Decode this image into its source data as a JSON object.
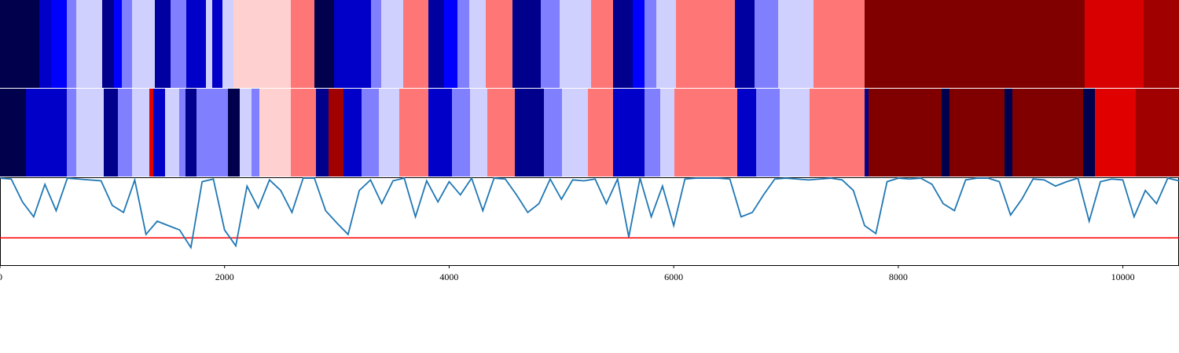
{
  "chart_data": [
    {
      "type": "segments",
      "xlim": [
        0,
        10500
      ],
      "breaks": [
        0,
        350,
        455,
        595,
        679,
        910,
        1015,
        1085,
        1176,
        1379,
        1519,
        1659,
        1834,
        1890,
        1981,
        2079,
        2590,
        2800,
        2975,
        3304,
        3395,
        3591,
        3815,
        3955,
        4074,
        4179,
        4326,
        4564,
        4816,
        4984,
        5264,
        5460,
        5635,
        5740,
        5845,
        6020,
        6545,
        6720,
        6930,
        7245,
        7700,
        9660,
        10185,
        10500
      ],
      "colors": [
        "#00004c",
        "#0000c8",
        "#0000ff",
        "#8080ff",
        "#d0d0ff",
        "#00008c",
        "#0000ff",
        "#8080ff",
        "#d0d0ff",
        "#0000a0",
        "#8080ff",
        "#0000c8",
        "#d0d0ff",
        "#0000c8",
        "#d0d0ff",
        "#ffd0d0",
        "#ff7676",
        "#00004c",
        "#0000c8",
        "#8080ff",
        "#d0d0ff",
        "#ff7676",
        "#0000a0",
        "#0000ff",
        "#8080ff",
        "#d0d0ff",
        "#ff7676",
        "#00008c",
        "#8080ff",
        "#d0d0ff",
        "#ff7676",
        "#00008c",
        "#0000ff",
        "#8080ff",
        "#d0d0ff",
        "#ff7676",
        "#0000a0",
        "#8080ff",
        "#d0d0ff",
        "#ff7676",
        "#800000",
        "#d80000",
        "#a00000"
      ]
    },
    {
      "type": "segments",
      "xlim": [
        0,
        10500
      ],
      "breaks": [
        0,
        231,
        595,
        679,
        924,
        1050,
        1176,
        1330,
        1365,
        1470,
        1596,
        1652,
        1750,
        2030,
        2135,
        2240,
        2310,
        2590,
        2814,
        2926,
        3059,
        3220,
        3374,
        3556,
        3815,
        4025,
        4186,
        4340,
        4585,
        4844,
        5005,
        5236,
        5460,
        5740,
        5880,
        6006,
        6566,
        6734,
        6944,
        7210,
        7700,
        7735,
        8386,
        8456,
        8946,
        9016,
        9646,
        9751,
        10115,
        10500
      ],
      "colors": [
        "#00004c",
        "#0000c8",
        "#8080ff",
        "#d0d0ff",
        "#00008c",
        "#8080ff",
        "#d0d0ff",
        "#e00000",
        "#0000c8",
        "#d0d0ff",
        "#8080ff",
        "#00008c",
        "#8080ff",
        "#00004c",
        "#d0d0ff",
        "#8080ff",
        "#ffd0d0",
        "#ff7676",
        "#00008c",
        "#a00000",
        "#0000c8",
        "#8080ff",
        "#d0d0ff",
        "#ff7676",
        "#0000c8",
        "#8080ff",
        "#d0d0ff",
        "#ff7676",
        "#00008c",
        "#8080ff",
        "#d0d0ff",
        "#ff7676",
        "#0000c8",
        "#8080ff",
        "#d0d0ff",
        "#ff7676",
        "#0000c8",
        "#8080ff",
        "#d0d0ff",
        "#ff7676",
        "#00008c",
        "#800000",
        "#00004c",
        "#800000",
        "#00004c",
        "#800000",
        "#00004c",
        "#e00000",
        "#a00000"
      ]
    },
    {
      "type": "line",
      "xlim": [
        0,
        10500
      ],
      "ylim": [
        0,
        1
      ],
      "color": "#1f77b4",
      "xticks": [
        0,
        2000,
        4000,
        6000,
        8000,
        10000
      ],
      "hline": {
        "value": 0.31,
        "color": "#ff0000"
      },
      "x": [
        0,
        100,
        200,
        300,
        400,
        500,
        600,
        700,
        800,
        900,
        1000,
        1100,
        1200,
        1300,
        1400,
        1500,
        1600,
        1700,
        1800,
        1900,
        2000,
        2100,
        2200,
        2300,
        2400,
        2500,
        2600,
        2700,
        2800,
        2900,
        3000,
        3100,
        3200,
        3300,
        3400,
        3500,
        3600,
        3700,
        3800,
        3900,
        4000,
        4100,
        4200,
        4300,
        4400,
        4500,
        4600,
        4700,
        4800,
        4900,
        5000,
        5100,
        5200,
        5300,
        5400,
        5500,
        5600,
        5700,
        5800,
        5900,
        6000,
        6100,
        6200,
        6300,
        6400,
        6500,
        6600,
        6700,
        6800,
        6900,
        7000,
        7100,
        7200,
        7300,
        7400,
        7500,
        7600,
        7700,
        7800,
        7900,
        8000,
        8100,
        8200,
        8300,
        8400,
        8500,
        8600,
        8700,
        8800,
        8900,
        9000,
        9100,
        9200,
        9300,
        9400,
        9500,
        9600,
        9700,
        9800,
        9900,
        10000,
        10100,
        10200,
        10300,
        10400,
        10500
      ],
      "values": [
        0.99,
        0.98,
        0.72,
        0.55,
        0.92,
        0.62,
        0.99,
        0.98,
        0.97,
        0.96,
        0.68,
        0.6,
        0.97,
        0.35,
        0.5,
        0.45,
        0.4,
        0.2,
        0.95,
        0.98,
        0.4,
        0.22,
        0.9,
        0.65,
        0.97,
        0.85,
        0.6,
        0.99,
        0.99,
        0.62,
        0.48,
        0.35,
        0.85,
        0.97,
        0.7,
        0.96,
        0.99,
        0.55,
        0.96,
        0.72,
        0.95,
        0.8,
        0.99,
        0.62,
        0.99,
        0.98,
        0.8,
        0.6,
        0.7,
        0.98,
        0.75,
        0.97,
        0.96,
        0.98,
        0.7,
        0.98,
        0.32,
        0.99,
        0.55,
        0.9,
        0.45,
        0.98,
        0.99,
        0.99,
        0.99,
        0.98,
        0.55,
        0.6,
        0.8,
        0.98,
        0.99,
        0.98,
        0.97,
        0.98,
        0.99,
        0.97,
        0.85,
        0.45,
        0.36,
        0.95,
        0.99,
        0.98,
        0.99,
        0.92,
        0.7,
        0.62,
        0.97,
        0.99,
        0.99,
        0.95,
        0.57,
        0.75,
        0.98,
        0.97,
        0.9,
        0.95,
        0.99,
        0.5,
        0.95,
        0.98,
        0.97,
        0.55,
        0.85,
        0.7,
        0.99,
        0.96
      ]
    }
  ]
}
